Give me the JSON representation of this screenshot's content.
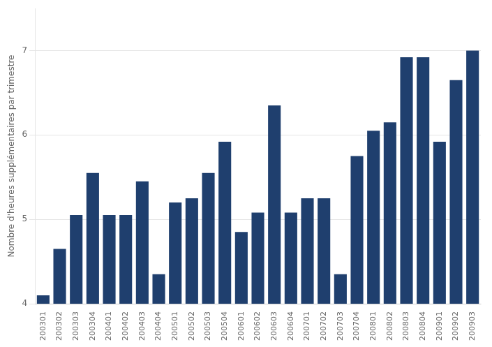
{
  "chart_data": {
    "type": "bar",
    "categories": [
      "200301",
      "200302",
      "200303",
      "200304",
      "200401",
      "200402",
      "200403",
      "200404",
      "200501",
      "200502",
      "200503",
      "200504",
      "200601",
      "200602",
      "200603",
      "200604",
      "200701",
      "200702",
      "200703",
      "200704",
      "200801",
      "200802",
      "200803",
      "200804",
      "200901",
      "200902",
      "200903"
    ],
    "values": [
      4.1,
      4.65,
      5.05,
      5.55,
      5.05,
      5.05,
      5.45,
      4.35,
      5.2,
      5.25,
      5.55,
      5.92,
      4.85,
      5.08,
      6.35,
      5.08,
      5.25,
      5.25,
      4.35,
      5.75,
      6.05,
      6.15,
      6.92,
      6.92,
      5.92,
      6.65,
      7.0
    ],
    "color": "#1f3f6e",
    "ylabel": "Nombre d'heures supplémentaires par trimestre",
    "ylim": [
      4.0,
      7.5
    ],
    "yticks": [
      4,
      5,
      6,
      7
    ],
    "grid": true
  }
}
